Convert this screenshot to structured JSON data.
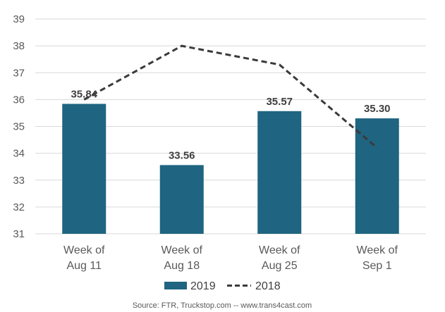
{
  "chart_data": {
    "type": "bar",
    "categories": [
      [
        "Week of",
        "Aug 11"
      ],
      [
        "Week of",
        "Aug 18"
      ],
      [
        "Week of",
        "Aug 25"
      ],
      [
        "Week of",
        "Sep 1"
      ]
    ],
    "series": [
      {
        "name": "2019",
        "type": "bar",
        "values": [
          35.84,
          33.56,
          35.57,
          35.3
        ],
        "labels": [
          "35.84",
          "33.56",
          "35.57",
          "35.30"
        ],
        "color": "#1f6480"
      },
      {
        "name": "2018",
        "type": "line",
        "style": "dashed",
        "values": [
          36.0,
          38.0,
          37.3,
          34.2
        ],
        "color": "#3a3a3a"
      }
    ],
    "ylim": [
      31,
      39
    ],
    "yticks": [
      31,
      32,
      33,
      34,
      35,
      36,
      37,
      38,
      39
    ],
    "grid": true,
    "legend": "bottom",
    "source": "Source: FTR, Truckstop.com -- www.trans4cast.com"
  }
}
